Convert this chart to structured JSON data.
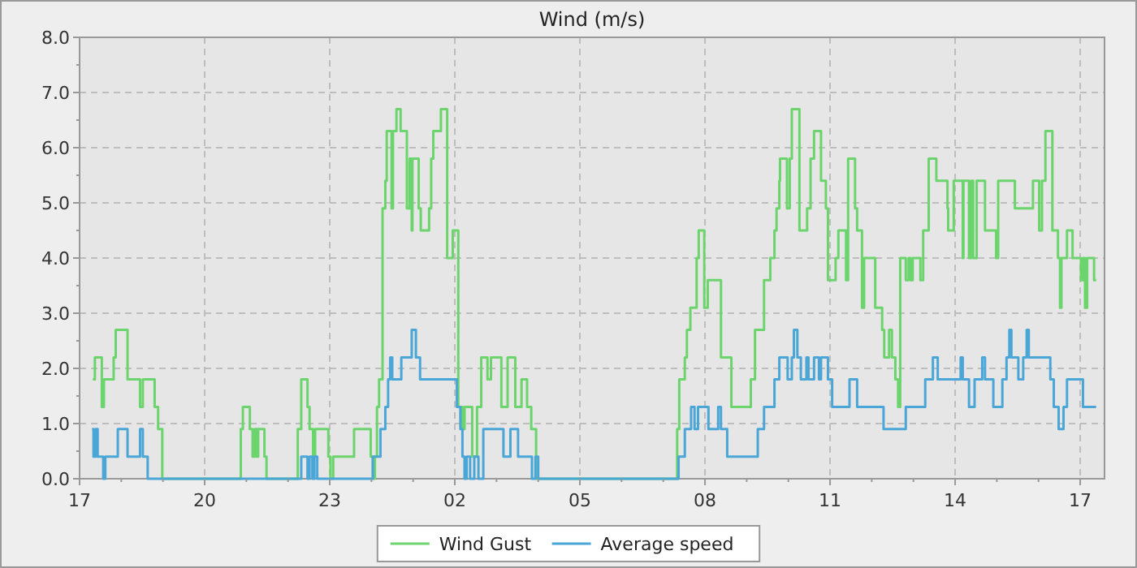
{
  "chart_data": {
    "type": "step",
    "title": "Wind (m/s)",
    "xlim": [
      "--01-01T17:00",
      "--01-02T17:35"
    ],
    "xticks": [
      {
        "value": "--01-01T17:00",
        "label": "17"
      },
      {
        "value": "--01-01T18:00",
        "label": null
      },
      {
        "value": "--01-01T19:00",
        "label": null
      },
      {
        "value": "--01-01T20:00",
        "label": "20"
      },
      {
        "value": "--01-01T21:00",
        "label": null
      },
      {
        "value": "--01-01T22:00",
        "label": null
      },
      {
        "value": "--01-01T23:00",
        "label": "23"
      },
      {
        "value": "--01-02T00:00",
        "label": null
      },
      {
        "value": "--01-02T01:00",
        "label": null
      },
      {
        "value": "--01-02T02:00",
        "label": "02"
      },
      {
        "value": "--01-02T03:00",
        "label": null
      },
      {
        "value": "--01-02T04:00",
        "label": null
      },
      {
        "value": "--01-02T05:00",
        "label": "05"
      },
      {
        "value": "--01-02T06:00",
        "label": null
      },
      {
        "value": "--01-02T07:00",
        "label": null
      },
      {
        "value": "--01-02T08:00",
        "label": "08"
      },
      {
        "value": "--01-02T09:00",
        "label": null
      },
      {
        "value": "--01-02T10:00",
        "label": null
      },
      {
        "value": "--01-02T11:00",
        "label": "11"
      },
      {
        "value": "--01-02T12:00",
        "label": null
      },
      {
        "value": "--01-02T13:00",
        "label": null
      },
      {
        "value": "--01-02T14:00",
        "label": "14"
      },
      {
        "value": "--01-02T15:00",
        "label": null
      },
      {
        "value": "--01-02T16:00",
        "label": null
      },
      {
        "value": "--01-02T17:00",
        "label": "17"
      }
    ],
    "ylim": [
      0,
      8
    ],
    "yticks": [
      {
        "value": 0,
        "label": "0.0"
      },
      {
        "value": 0.5,
        "label": null
      },
      {
        "value": 1,
        "label": "1.0"
      },
      {
        "value": 1.5,
        "label": null
      },
      {
        "value": 2,
        "label": "2.0"
      },
      {
        "value": 2.5,
        "label": null
      },
      {
        "value": 3,
        "label": "3.0"
      },
      {
        "value": 3.5,
        "label": null
      },
      {
        "value": 4,
        "label": "4.0"
      },
      {
        "value": 4.5,
        "label": null
      },
      {
        "value": 5,
        "label": "5.0"
      },
      {
        "value": 5.5,
        "label": null
      },
      {
        "value": 6,
        "label": "6.0"
      },
      {
        "value": 6.5,
        "label": null
      },
      {
        "value": 7,
        "label": "7.0"
      },
      {
        "value": 7.5,
        "label": null
      },
      {
        "value": 8,
        "label": "8.0"
      }
    ],
    "grid": true,
    "legend": "bottom",
    "series": [
      {
        "name": "Wind Gust",
        "color": "#6cd46c",
        "x": [
          "--01-01T17:19",
          "--01-01T17:22",
          "--01-01T17:32",
          "--01-01T17:35",
          "--01-01T17:49",
          "--01-01T17:52",
          "--01-01T18:09",
          "--01-01T18:27",
          "--01-01T18:31",
          "--01-01T18:48",
          "--01-01T18:53",
          "--01-01T18:59",
          "--01-01T20:52",
          "--01-01T20:55",
          "--01-01T21:05",
          "--01-01T21:09",
          "--01-01T21:12",
          "--01-01T21:15",
          "--01-01T21:17",
          "--01-01T21:26",
          "--01-01T21:29",
          "--01-01T22:14",
          "--01-01T22:19",
          "--01-01T22:28",
          "--01-01T22:31",
          "--01-01T22:36",
          "--01-01T22:39",
          "--01-01T22:58",
          "--01-01T23:01",
          "--01-01T23:05",
          "--01-01T23:35",
          "--01-01T23:59",
          "--01-02T00:02",
          "--01-02T00:05",
          "--01-02T00:08",
          "--01-02T00:11",
          "--01-02T00:16",
          "--01-02T00:20",
          "--01-02T00:22",
          "--01-02T00:29",
          "--01-02T00:31",
          "--01-02T00:36",
          "--01-02T00:42",
          "--01-02T00:51",
          "--01-02T00:55",
          "--01-02T00:58",
          "--01-02T00:59",
          "--01-02T01:08",
          "--01-02T01:11",
          "--01-02T01:23",
          "--01-02T01:26",
          "--01-02T01:29",
          "--01-02T01:40",
          "--01-02T01:49",
          "--01-02T01:57",
          "--01-02T02:05",
          "--01-02T02:11",
          "--01-02T02:14",
          "--01-02T02:25",
          "--01-02T02:32",
          "--01-02T02:38",
          "--01-02T02:47",
          "--01-02T02:52",
          "--01-02T03:07",
          "--01-02T03:16",
          "--01-02T03:27",
          "--01-02T03:36",
          "--01-02T03:44",
          "--01-02T03:50",
          "--01-02T03:57",
          "--01-02T07:20",
          "--01-02T07:23",
          "--01-02T07:31",
          "--01-02T07:34",
          "--01-02T07:39",
          "--01-02T07:48",
          "--01-02T07:51",
          "--01-02T07:59",
          "--01-02T08:04",
          "--01-02T08:23",
          "--01-02T08:38",
          "--01-02T09:06",
          "--01-02T09:12",
          "--01-02T09:25",
          "--01-02T09:34",
          "--01-02T09:40",
          "--01-02T09:43",
          "--01-02T09:47",
          "--01-02T09:48",
          "--01-02T09:58",
          "--01-02T10:02",
          "--01-02T10:05",
          "--01-02T10:16",
          "--01-02T10:27",
          "--01-02T10:32",
          "--01-02T10:37",
          "--01-02T10:47",
          "--01-02T10:54",
          "--01-02T10:57",
          "--01-02T11:08",
          "--01-02T11:12",
          "--01-02T11:23",
          "--01-02T11:26",
          "--01-02T11:36",
          "--01-02T11:39",
          "--01-02T11:46",
          "--01-02T11:49",
          "--01-02T12:05",
          "--01-02T12:15",
          "--01-02T12:18",
          "--01-02T12:25",
          "--01-02T12:29",
          "--01-02T12:34",
          "--01-02T12:38",
          "--01-02T12:41",
          "--01-02T12:49",
          "--01-02T12:53",
          "--01-02T12:56",
          "--01-02T12:59",
          "--01-02T13:10",
          "--01-02T13:14",
          "--01-02T13:22",
          "--01-02T13:33",
          "--01-02T13:49",
          "--01-02T13:50",
          "--01-02T13:58",
          "--01-02T14:11",
          "--01-02T14:12",
          "--01-02T14:20",
          "--01-02T14:23",
          "--01-02T14:26",
          "--01-02T14:31",
          "--01-02T14:43",
          "--01-02T14:59",
          "--01-02T15:02",
          "--01-02T15:26",
          "--01-02T15:52",
          "--01-02T16:01",
          "--01-02T16:05",
          "--01-02T16:10",
          "--01-02T16:20",
          "--01-02T16:28",
          "--01-02T16:31",
          "--01-02T16:33",
          "--01-02T16:41",
          "--01-02T16:49",
          "--01-02T17:01",
          "--01-02T17:04",
          "--01-02T17:07",
          "--01-02T17:10",
          "--01-02T17:20",
          "--01-02T17:23"
        ],
        "values": [
          1.8,
          2.2,
          1.3,
          1.8,
          2.2,
          2.7,
          1.8,
          1.3,
          1.8,
          1.3,
          0.9,
          0,
          0.9,
          1.3,
          0.9,
          0.4,
          0.9,
          0.4,
          0.9,
          0.4,
          0,
          0.9,
          1.8,
          1.3,
          0.9,
          0.4,
          0.9,
          0.4,
          0,
          0.4,
          0.9,
          0.4,
          0,
          0.4,
          1.3,
          1.8,
          4.9,
          5.4,
          6.3,
          4.9,
          6.3,
          6.7,
          6.3,
          4.9,
          5.8,
          4.5,
          5.8,
          4.9,
          4.5,
          4.9,
          5.8,
          6.3,
          6.7,
          4.0,
          4.5,
          1.3,
          0.9,
          1.3,
          0.4,
          1.3,
          2.2,
          1.8,
          2.2,
          1.3,
          2.2,
          1.3,
          1.8,
          1.3,
          0.9,
          0,
          0.9,
          1.8,
          2.2,
          2.7,
          3.1,
          4.0,
          4.5,
          3.1,
          3.6,
          2.2,
          1.3,
          1.8,
          2.7,
          3.6,
          4.0,
          4.5,
          4.9,
          5.4,
          5.8,
          4.9,
          5.8,
          6.7,
          4.5,
          4.9,
          5.8,
          6.3,
          5.4,
          4.9,
          3.6,
          4.0,
          4.5,
          3.6,
          5.8,
          4.9,
          4.5,
          3.1,
          4.0,
          3.1,
          2.7,
          2.2,
          2.7,
          2.2,
          1.8,
          1.3,
          4.0,
          3.6,
          4.0,
          3.6,
          4.0,
          3.6,
          4.5,
          5.8,
          5.4,
          4.9,
          4.5,
          5.4,
          4.0,
          5.4,
          4.0,
          5.4,
          4.0,
          5.4,
          4.5,
          4.0,
          5.4,
          4.9,
          5.4,
          4.5,
          5.4,
          6.3,
          4.5,
          4.0,
          3.1,
          4.0,
          4.5,
          4.0,
          3.6,
          4.0,
          3.1,
          4.0,
          3.6,
          3.6
        ]
      },
      {
        "name": "Average speed",
        "color": "#4ba6d8",
        "x": [
          "--01-01T17:18",
          "--01-01T17:20",
          "--01-01T17:23",
          "--01-01T17:26",
          "--01-01T17:34",
          "--01-01T17:37",
          "--01-01T17:55",
          "--01-01T18:09",
          "--01-01T18:27",
          "--01-01T18:31",
          "--01-01T18:38",
          "--01-01T22:19",
          "--01-01T22:28",
          "--01-01T22:31",
          "--01-01T22:35",
          "--01-01T22:38",
          "--01-01T22:42",
          "--01-02T00:02",
          "--01-02T00:13",
          "--01-02T00:20",
          "--01-02T00:24",
          "--01-02T00:27",
          "--01-02T00:30",
          "--01-02T00:43",
          "--01-02T00:58",
          "--01-02T01:04",
          "--01-02T01:10",
          "--01-02T02:03",
          "--01-02T02:08",
          "--01-02T02:11",
          "--01-02T02:14",
          "--01-02T02:17",
          "--01-02T02:22",
          "--01-02T02:28",
          "--01-02T02:34",
          "--01-02T02:41",
          "--01-02T03:10",
          "--01-02T03:20",
          "--01-02T03:31",
          "--01-02T03:51",
          "--01-02T03:56",
          "--01-02T04:00",
          "--01-02T07:22",
          "--01-02T07:31",
          "--01-02T07:40",
          "--01-02T07:45",
          "--01-02T07:50",
          "--01-02T08:05",
          "--01-02T08:19",
          "--01-02T08:23",
          "--01-02T08:32",
          "--01-02T09:16",
          "--01-02T09:25",
          "--01-02T09:40",
          "--01-02T09:47",
          "--01-02T09:59",
          "--01-02T10:05",
          "--01-02T10:08",
          "--01-02T10:13",
          "--01-02T10:18",
          "--01-02T10:26",
          "--01-02T10:29",
          "--01-02T10:37",
          "--01-02T10:44",
          "--01-02T10:47",
          "--01-02T10:57",
          "--01-02T11:03",
          "--01-02T11:28",
          "--01-02T11:39",
          "--01-02T12:17",
          "--01-02T12:49",
          "--01-02T13:17",
          "--01-02T13:28",
          "--01-02T13:35",
          "--01-02T14:08",
          "--01-02T14:11",
          "--01-02T14:20",
          "--01-02T14:28",
          "--01-02T14:39",
          "--01-02T14:43",
          "--01-02T14:55",
          "--01-02T15:08",
          "--01-02T15:14",
          "--01-02T15:18",
          "--01-02T15:21",
          "--01-02T15:31",
          "--01-02T15:38",
          "--01-02T15:43",
          "--01-02T15:46",
          "--01-02T16:17",
          "--01-02T16:22",
          "--01-02T16:29",
          "--01-02T16:36",
          "--01-02T16:41",
          "--01-02T17:04",
          "--01-02T17:23"
        ],
        "values": [
          0.9,
          0.4,
          0.9,
          0.4,
          0,
          0.4,
          0.9,
          0.4,
          0.9,
          0.4,
          0,
          0.4,
          0,
          0.4,
          0,
          0.4,
          0,
          0.4,
          0.9,
          1.3,
          1.8,
          2.2,
          1.8,
          2.2,
          2.7,
          2.2,
          1.8,
          1.3,
          0.9,
          0.4,
          0,
          0.4,
          0,
          0.4,
          0,
          0.9,
          0.4,
          0.9,
          0.4,
          0,
          0.4,
          0,
          0.4,
          0.9,
          1.3,
          0.9,
          1.3,
          0.9,
          1.3,
          0.9,
          0.4,
          0.9,
          1.3,
          1.8,
          2.2,
          1.8,
          2.2,
          2.7,
          2.2,
          1.8,
          2.2,
          1.8,
          2.2,
          1.8,
          2.2,
          1.8,
          1.3,
          1.8,
          1.3,
          0.9,
          1.3,
          1.8,
          2.2,
          1.8,
          2.2,
          1.8,
          1.3,
          1.8,
          2.2,
          1.8,
          1.3,
          1.8,
          2.2,
          2.7,
          2.2,
          1.8,
          2.2,
          2.7,
          2.2,
          1.8,
          1.3,
          0.9,
          1.3,
          1.8,
          1.3,
          1.3
        ]
      }
    ]
  }
}
